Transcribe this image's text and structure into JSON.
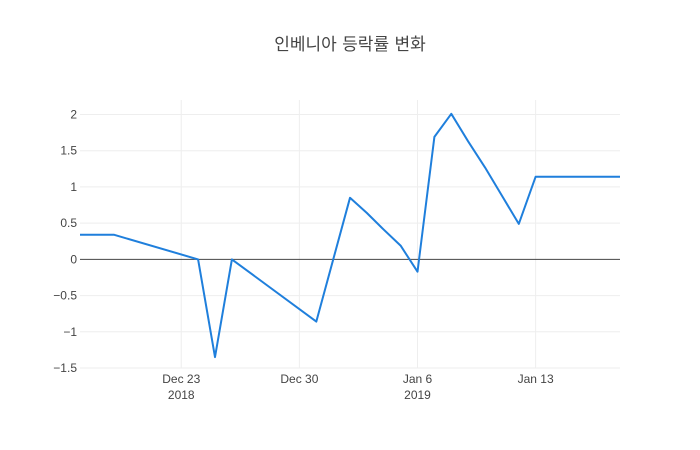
{
  "chart_data": {
    "type": "line",
    "title": "인베니아 등락률 변화",
    "xlabel": "",
    "ylabel": "",
    "x_range": [
      "2018-12-17",
      "2019-01-18"
    ],
    "ylim": [
      -1.5,
      2.2
    ],
    "grid": true,
    "zero_line": true,
    "colors": {
      "line": "#1f7fdc",
      "grid": "#eeeeee",
      "zero": "#444444",
      "text": "#444444"
    },
    "y_ticks": [
      {
        "value": 2,
        "label": "2"
      },
      {
        "value": 1.5,
        "label": "1.5"
      },
      {
        "value": 1,
        "label": "1"
      },
      {
        "value": 0.5,
        "label": "0.5"
      },
      {
        "value": 0,
        "label": "0"
      },
      {
        "value": -0.5,
        "label": "−0.5"
      },
      {
        "value": -1,
        "label": "−1"
      },
      {
        "value": -1.5,
        "label": "−1.5"
      }
    ],
    "x_ticks": [
      {
        "date": "2018-12-23",
        "label": "Dec 23",
        "sublabel": "2018"
      },
      {
        "date": "2018-12-30",
        "label": "Dec 30",
        "sublabel": ""
      },
      {
        "date": "2019-01-06",
        "label": "Jan 6",
        "sublabel": "2019"
      },
      {
        "date": "2019-01-13",
        "label": "Jan 13",
        "sublabel": ""
      }
    ],
    "series": [
      {
        "x": [
          "2018-12-17",
          "2018-12-19",
          "2018-12-24",
          "2018-12-25",
          "2018-12-26",
          "2018-12-31",
          "2019-01-02",
          "2019-01-03",
          "2019-01-04",
          "2019-01-05",
          "2019-01-06",
          "2019-01-07",
          "2019-01-08",
          "2019-01-09",
          "2019-01-10",
          "2019-01-11",
          "2019-01-12",
          "2019-01-13",
          "2019-01-14",
          "2019-01-15",
          "2019-01-16",
          "2019-01-18"
        ],
        "y": [
          0.34,
          0.34,
          0.0,
          -1.35,
          0.0,
          -0.86,
          0.85,
          0.64,
          0.41,
          0.19,
          -0.17,
          1.69,
          2.01,
          1.63,
          1.27,
          0.88,
          0.49,
          1.14,
          1.14,
          1.14,
          1.14,
          1.14
        ]
      }
    ]
  }
}
